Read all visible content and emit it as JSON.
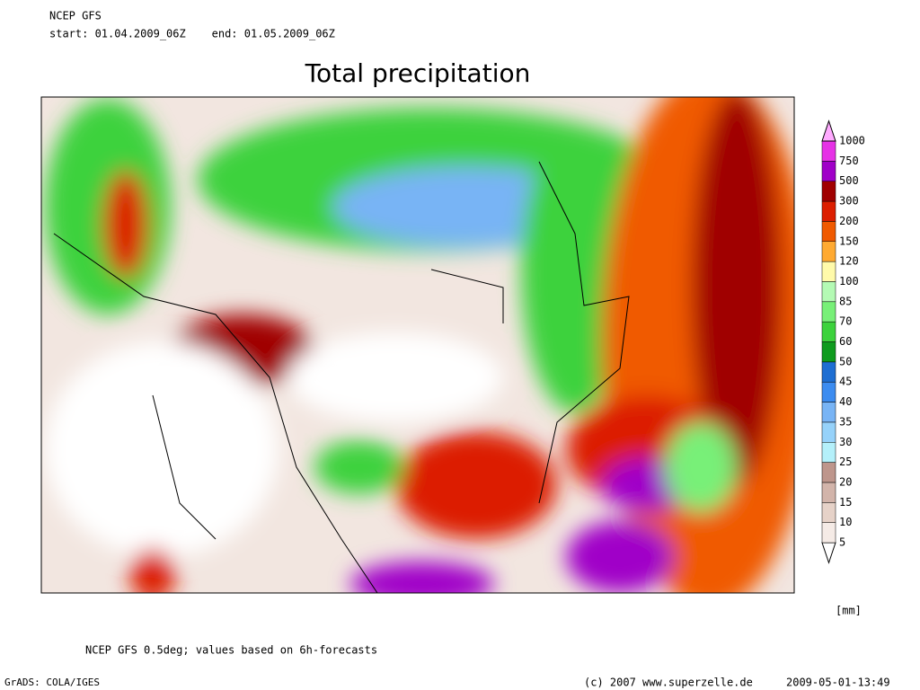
{
  "header": {
    "model": "NCEP GFS",
    "period": "start: 01.04.2009_06Z    end: 01.05.2009_06Z"
  },
  "title": "Total precipitation",
  "legend": {
    "levels": [
      5,
      10,
      15,
      20,
      25,
      30,
      35,
      40,
      45,
      50,
      60,
      70,
      85,
      100,
      120,
      150,
      200,
      300,
      500,
      750,
      1000
    ],
    "colors": [
      "#ffffff",
      "#f5ebe6",
      "#e6d2c8",
      "#d2b4aa",
      "#be968c",
      "#b4f0fa",
      "#96d2fa",
      "#78b4f5",
      "#3c8cf0",
      "#1e6ed2",
      "#0f9b1e",
      "#3cd23c",
      "#78f078",
      "#b4fab4",
      "#fffaaa",
      "#ffaa32",
      "#f05a00",
      "#dc1e00",
      "#a00000",
      "#a000c8",
      "#e632e6",
      "#ffaaff"
    ],
    "unit": "[mm]"
  },
  "footer": {
    "note": "NCEP GFS 0.5deg; values based on 6h-forecasts",
    "software": "GrADS: COLA/IGES",
    "copyright": "(c) 2007 www.superzelle.de",
    "timestamp": "2009-05-01-13:49"
  }
}
